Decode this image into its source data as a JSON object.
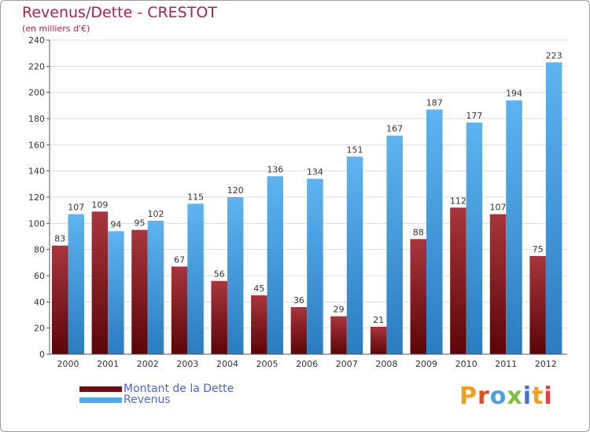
{
  "title": "Revenus/Dette - CRESTOT",
  "subtitle": "(en milliers d'€)",
  "logo": {
    "text": "Proxiti",
    "letter_colors": [
      "#f0a020",
      "#e05020",
      "#4aa0e0",
      "#80c040",
      "#4070d0",
      "#f0a020",
      "#e04040"
    ]
  },
  "chart_data": {
    "type": "bar",
    "categories": [
      "2000",
      "2001",
      "2002",
      "2003",
      "2004",
      "2005",
      "2006",
      "2007",
      "2008",
      "2009",
      "2010",
      "2011",
      "2012"
    ],
    "series": [
      {
        "name": "Montant de la Dette",
        "color": "#7a1a1f",
        "values": [
          83,
          109,
          95,
          67,
          56,
          45,
          36,
          29,
          21,
          88,
          112,
          107,
          75
        ]
      },
      {
        "name": "Revenus",
        "color": "#55a8e6",
        "values": [
          107,
          94,
          102,
          115,
          120,
          136,
          134,
          151,
          167,
          187,
          177,
          194,
          223
        ]
      }
    ],
    "ylim": [
      0,
      240
    ],
    "yticks": [
      0,
      20,
      40,
      60,
      80,
      100,
      120,
      140,
      160,
      180,
      200,
      220,
      240
    ],
    "grid": true,
    "legend_position": "bottom-left"
  }
}
